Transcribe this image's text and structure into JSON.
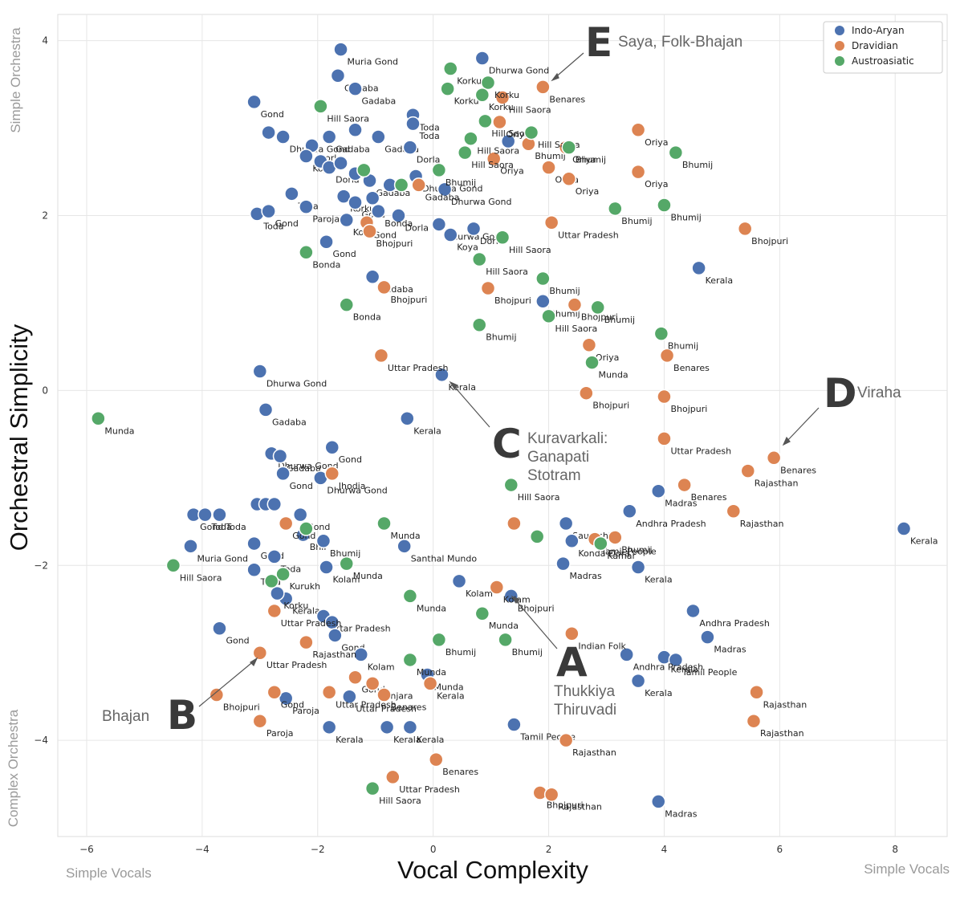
{
  "chart_data": {
    "type": "scatter",
    "xlabel": "Vocal Complexity",
    "ylabel": "Orchestral Simplicity",
    "xlim": [
      -6.5,
      8.9
    ],
    "ylim": [
      -5.1,
      4.3
    ],
    "xticks": [
      -6,
      -4,
      -2,
      0,
      2,
      4,
      6,
      8
    ],
    "yticks": [
      -4,
      -2,
      0,
      2,
      4
    ],
    "grid": true,
    "legend_position": "top-right",
    "corner_labels": {
      "left_bottom": "Simple Vocals",
      "right_bottom": "Simple Vocals",
      "top_left": "Simple Orchestra",
      "bottom_left": "Complex Orchestra"
    },
    "series": [
      {
        "name": "Indo-Aryan",
        "color": "#4c72b0",
        "points": [
          [
            -1.6,
            3.9,
            "Muria Gond"
          ],
          [
            -1.65,
            3.6,
            "Gadaba"
          ],
          [
            -1.35,
            3.45,
            "Gadaba"
          ],
          [
            -3.1,
            3.3,
            "Gond"
          ],
          [
            0.85,
            3.8,
            "Dhurwa Gond"
          ],
          [
            -0.35,
            3.15,
            "Toda"
          ],
          [
            -0.35,
            3.05,
            "Toda"
          ],
          [
            -2.6,
            2.9,
            "Dhurwa Gond"
          ],
          [
            -2.85,
            2.95,
            ""
          ],
          [
            -1.8,
            2.9,
            "Gadaba"
          ],
          [
            -1.35,
            2.98,
            ""
          ],
          [
            -0.95,
            2.9,
            "Gadaba"
          ],
          [
            -0.4,
            2.78,
            "Dorla"
          ],
          [
            -2.1,
            2.8,
            "Dorla"
          ],
          [
            -2.2,
            2.68,
            "Koya"
          ],
          [
            -1.95,
            2.62,
            ""
          ],
          [
            -1.8,
            2.55,
            "Dorla"
          ],
          [
            -1.6,
            2.6,
            ""
          ],
          [
            -1.35,
            2.48,
            ""
          ],
          [
            -1.1,
            2.4,
            "Gadaba"
          ],
          [
            -0.75,
            2.35,
            ""
          ],
          [
            -0.3,
            2.45,
            "Dhurwa Gond"
          ],
          [
            0.2,
            2.3,
            "Dhurwa Gond"
          ],
          [
            -2.45,
            2.25,
            "Toda"
          ],
          [
            -1.55,
            2.22,
            "Korku"
          ],
          [
            -1.35,
            2.15,
            "Gond"
          ],
          [
            -1.05,
            2.2,
            ""
          ],
          [
            -0.6,
            2.0,
            "Dorla"
          ],
          [
            -0.95,
            2.05,
            "Bonda"
          ],
          [
            -3.05,
            2.02,
            "Toda"
          ],
          [
            -2.85,
            2.05,
            "Gond"
          ],
          [
            -2.2,
            2.1,
            "Paroja"
          ],
          [
            -1.5,
            1.95,
            "Koya"
          ],
          [
            0.1,
            1.9,
            "Dhurwa Gond"
          ],
          [
            0.7,
            1.85,
            "Dorla"
          ],
          [
            -1.85,
            1.7,
            "Gond"
          ],
          [
            -1.05,
            1.3,
            "Gadaba"
          ],
          [
            1.3,
            2.85,
            ""
          ],
          [
            0.3,
            1.78,
            "Koya"
          ],
          [
            4.6,
            1.4,
            "Kerala"
          ],
          [
            1.9,
            1.02,
            "Bhumij"
          ],
          [
            -3.0,
            0.22,
            "Dhurwa Gond"
          ],
          [
            -2.9,
            -0.22,
            "Gadaba"
          ],
          [
            0.15,
            0.18,
            "Kerala"
          ],
          [
            -0.45,
            -0.32,
            "Kerala"
          ],
          [
            -2.8,
            -0.72,
            "Dhurwa Gond"
          ],
          [
            -2.65,
            -0.75,
            "Gadaba"
          ],
          [
            -1.75,
            -0.65,
            "Gond"
          ],
          [
            -2.6,
            -0.95,
            "Gond"
          ],
          [
            -1.95,
            -1.0,
            "Dhurwa Gond"
          ],
          [
            -3.05,
            -1.3,
            ""
          ],
          [
            -2.9,
            -1.3,
            ""
          ],
          [
            -2.75,
            -1.3,
            ""
          ],
          [
            -4.15,
            -1.42,
            "Gond"
          ],
          [
            -3.95,
            -1.42,
            "Toda"
          ],
          [
            -3.7,
            -1.42,
            "Toda"
          ],
          [
            -2.3,
            -1.42,
            "Gond"
          ],
          [
            -2.25,
            -1.65,
            "Bhil"
          ],
          [
            -1.9,
            -1.72,
            "Bhumij"
          ],
          [
            -3.1,
            -1.75,
            "Gond"
          ],
          [
            -4.2,
            -1.78,
            "Muria Gond"
          ],
          [
            -2.75,
            -1.9,
            "Toda"
          ],
          [
            -3.1,
            -2.05,
            "Toda"
          ],
          [
            -1.85,
            -2.02,
            "Kolam"
          ],
          [
            -0.5,
            -1.78,
            "Santhal Mundo"
          ],
          [
            0.45,
            -2.18,
            "Kolam"
          ],
          [
            1.35,
            -2.35,
            "Bhojpuri"
          ],
          [
            2.3,
            -1.52,
            "Saurashtra"
          ],
          [
            2.4,
            -1.72,
            "Konda-Dora"
          ],
          [
            2.25,
            -1.98,
            "Madras"
          ],
          [
            3.55,
            -2.02,
            "Kerala"
          ],
          [
            3.4,
            -1.38,
            "Andhra Pradesh"
          ],
          [
            3.9,
            -1.15,
            "Madras"
          ],
          [
            8.15,
            -1.58,
            "Kerala"
          ],
          [
            4.5,
            -2.52,
            "Andhra Pradesh"
          ],
          [
            4.75,
            -2.82,
            "Madras"
          ],
          [
            4.0,
            -3.05,
            "Kerala"
          ],
          [
            4.2,
            -3.08,
            "Tamil People"
          ],
          [
            3.55,
            -3.32,
            "Kerala"
          ],
          [
            3.35,
            -3.02,
            "Andhra Pradesh"
          ],
          [
            -2.55,
            -2.38,
            "Kerala"
          ],
          [
            -2.7,
            -2.32,
            "Korku"
          ],
          [
            -1.9,
            -2.58,
            "Uttar Pradesh"
          ],
          [
            -1.75,
            -2.65,
            ""
          ],
          [
            -1.7,
            -2.8,
            "Gond"
          ],
          [
            -3.7,
            -2.72,
            "Gond"
          ],
          [
            -1.25,
            -3.02,
            "Kolam"
          ],
          [
            -0.1,
            -3.25,
            "Munda"
          ],
          [
            -2.55,
            -3.52,
            "Paroja"
          ],
          [
            -1.45,
            -3.5,
            "Uttar Pradesh"
          ],
          [
            -1.8,
            -3.85,
            "Kerala"
          ],
          [
            -0.8,
            -3.85,
            "Kerala"
          ],
          [
            -0.4,
            -3.85,
            "Kerala"
          ],
          [
            1.4,
            -3.82,
            "Tamil People"
          ],
          [
            3.9,
            -4.7,
            "Madras"
          ]
        ]
      },
      {
        "name": "Dravidian",
        "color": "#dd8452",
        "points": [
          [
            1.9,
            3.47,
            "Benares"
          ],
          [
            1.2,
            3.35,
            "Hill Saora"
          ],
          [
            1.15,
            3.07,
            "Oriya"
          ],
          [
            1.65,
            2.82,
            "Bhumij"
          ],
          [
            2.3,
            2.78,
            "Oriya"
          ],
          [
            3.55,
            2.98,
            "Oriya"
          ],
          [
            1.05,
            2.65,
            "Oriya"
          ],
          [
            2.0,
            2.55,
            "Oriya"
          ],
          [
            2.35,
            2.42,
            "Oriya"
          ],
          [
            3.55,
            2.5,
            "Oriya"
          ],
          [
            -0.25,
            2.35,
            "Gadaba"
          ],
          [
            -1.15,
            1.92,
            "Gond"
          ],
          [
            -1.1,
            1.82,
            "Bhojpuri"
          ],
          [
            2.05,
            1.92,
            "Uttar Pradesh"
          ],
          [
            5.4,
            1.85,
            "Bhojpuri"
          ],
          [
            0.95,
            1.17,
            "Bhojpuri"
          ],
          [
            -0.85,
            1.18,
            "Bhojpuri"
          ],
          [
            2.45,
            0.98,
            "Bhojpuri"
          ],
          [
            2.7,
            0.52,
            "Oriya"
          ],
          [
            4.05,
            0.4,
            "Benares"
          ],
          [
            -0.9,
            0.4,
            "Uttar Pradesh"
          ],
          [
            2.65,
            -0.03,
            "Bhojpuri"
          ],
          [
            4.0,
            -0.07,
            "Bhojpuri"
          ],
          [
            4.0,
            -0.55,
            "Uttar Pradesh"
          ],
          [
            5.9,
            -0.77,
            "Benares"
          ],
          [
            5.45,
            -0.92,
            "Rajasthan"
          ],
          [
            4.35,
            -1.08,
            "Benares"
          ],
          [
            5.2,
            -1.38,
            "Rajasthan"
          ],
          [
            -1.75,
            -0.95,
            "Jhodia"
          ],
          [
            -2.55,
            -1.52,
            "Gond"
          ],
          [
            1.4,
            -1.52,
            ""
          ],
          [
            2.8,
            -1.7,
            "Tamil People"
          ],
          [
            3.15,
            -1.68,
            "Bhumij"
          ],
          [
            1.1,
            -2.25,
            "Kolam"
          ],
          [
            2.4,
            -2.78,
            "Indian Folk"
          ],
          [
            -2.75,
            -2.52,
            "Uttar Pradesh"
          ],
          [
            -2.2,
            -2.88,
            "Rajasthan"
          ],
          [
            -3.0,
            -3.0,
            "Uttar Pradesh"
          ],
          [
            -3.75,
            -3.48,
            "Bhojpuri"
          ],
          [
            -2.75,
            -3.45,
            "Gond"
          ],
          [
            -1.8,
            -3.45,
            "Uttar Pradesh"
          ],
          [
            -1.35,
            -3.28,
            "Gond"
          ],
          [
            -1.05,
            -3.35,
            "Banjara"
          ],
          [
            -0.85,
            -3.48,
            "Benares"
          ],
          [
            -0.05,
            -3.35,
            "Kerala"
          ],
          [
            -3.0,
            -3.78,
            "Paroja"
          ],
          [
            0.05,
            -4.22,
            "Benares"
          ],
          [
            -0.7,
            -4.42,
            "Uttar Pradesh"
          ],
          [
            2.3,
            -4.0,
            "Rajasthan"
          ],
          [
            1.85,
            -4.6,
            "Bhojpuri"
          ],
          [
            2.05,
            -4.62,
            "Rajasthan"
          ],
          [
            5.6,
            -3.45,
            "Rajasthan"
          ],
          [
            5.55,
            -3.78,
            "Rajasthan"
          ]
        ]
      },
      {
        "name": "Austroasiatic",
        "color": "#55a868",
        "points": [
          [
            0.3,
            3.68,
            "Korku"
          ],
          [
            0.95,
            3.52,
            "Korku"
          ],
          [
            0.25,
            3.45,
            "Korku"
          ],
          [
            0.85,
            3.38,
            "Korku"
          ],
          [
            -1.95,
            3.25,
            "Hill Saora"
          ],
          [
            0.9,
            3.08,
            "Hill Saora"
          ],
          [
            1.7,
            2.95,
            "Hill Saora"
          ],
          [
            0.65,
            2.88,
            "Hill Saora"
          ],
          [
            0.55,
            2.72,
            "Hill Saora"
          ],
          [
            2.35,
            2.78,
            "Bhumij"
          ],
          [
            4.2,
            2.72,
            "Bhumij"
          ],
          [
            0.1,
            2.52,
            "Bhumij"
          ],
          [
            -1.2,
            2.52,
            ""
          ],
          [
            -0.55,
            2.35,
            ""
          ],
          [
            3.15,
            2.08,
            "Bhumij"
          ],
          [
            4.0,
            2.12,
            "Bhumij"
          ],
          [
            1.2,
            1.75,
            "Hill Saora"
          ],
          [
            0.8,
            1.5,
            "Hill Saora"
          ],
          [
            -2.2,
            1.58,
            "Bonda"
          ],
          [
            1.9,
            1.28,
            "Bhumij"
          ],
          [
            2.85,
            0.95,
            "Bhumij"
          ],
          [
            2.0,
            0.85,
            "Hill Saora"
          ],
          [
            0.8,
            0.75,
            "Bhumij"
          ],
          [
            3.95,
            0.65,
            "Bhumij"
          ],
          [
            2.75,
            0.32,
            "Munda"
          ],
          [
            -1.5,
            0.98,
            "Bonda"
          ],
          [
            -5.8,
            -0.32,
            "Munda"
          ],
          [
            1.35,
            -1.08,
            "Hill Saora"
          ],
          [
            -0.85,
            -1.52,
            "Munda"
          ],
          [
            1.8,
            -1.67,
            ""
          ],
          [
            2.9,
            -1.75,
            "Kamar"
          ],
          [
            -2.2,
            -1.58,
            ""
          ],
          [
            -4.5,
            -2.0,
            "Hill Saora"
          ],
          [
            -2.6,
            -2.1,
            "Kurukh"
          ],
          [
            -1.5,
            -1.98,
            "Munda"
          ],
          [
            -2.8,
            -2.18,
            ""
          ],
          [
            -0.4,
            -2.35,
            "Munda"
          ],
          [
            0.85,
            -2.55,
            "Munda"
          ],
          [
            1.25,
            -2.85,
            "Bhumij"
          ],
          [
            0.1,
            -2.85,
            "Bhumij"
          ],
          [
            -0.4,
            -3.08,
            "Munda"
          ],
          [
            -1.05,
            -4.55,
            "Hill Saora"
          ]
        ]
      }
    ],
    "annotations": [
      {
        "letter": "E",
        "text": "Saya, Folk-Bhajan"
      },
      {
        "letter": "D",
        "text": "Viraha"
      },
      {
        "letter": "C",
        "text": "Kuravarkali: Ganapati Stotram"
      },
      {
        "letter": "A",
        "text": "Thukkiya Thiruvadi"
      },
      {
        "letter": "B",
        "text": "Bhajan"
      }
    ]
  }
}
